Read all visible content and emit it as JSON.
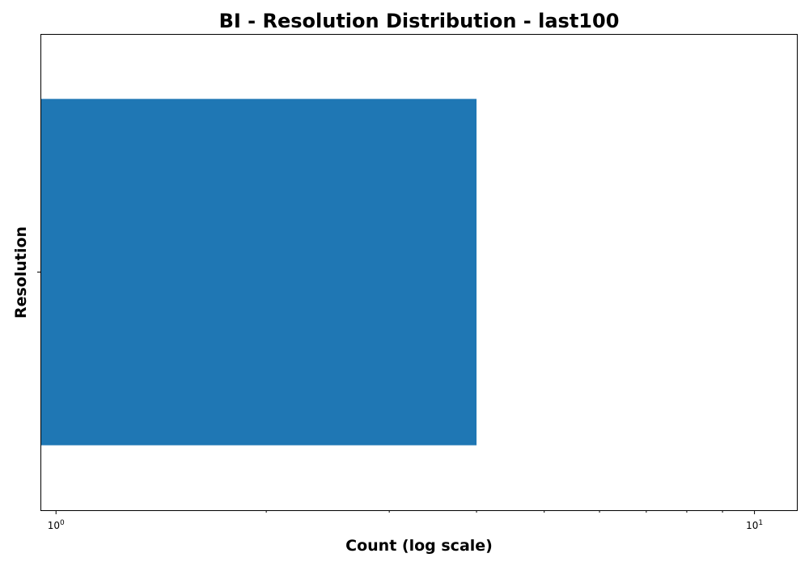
{
  "chart_data": {
    "type": "bar",
    "orientation": "horizontal",
    "title": "BI - Resolution Distribution - last100",
    "xlabel": "Count (log scale)",
    "ylabel": "Resolution",
    "x_scale": "log",
    "xlim": [
      0.95,
      11.5
    ],
    "x_ticks": [
      {
        "value": 1,
        "base": "10",
        "exp": "0"
      },
      {
        "value": 10,
        "base": "10",
        "exp": "1"
      }
    ],
    "categories": [
      ""
    ],
    "values": [
      4
    ],
    "bar_color": "#1f77b4",
    "grid": false,
    "legend": "none"
  }
}
